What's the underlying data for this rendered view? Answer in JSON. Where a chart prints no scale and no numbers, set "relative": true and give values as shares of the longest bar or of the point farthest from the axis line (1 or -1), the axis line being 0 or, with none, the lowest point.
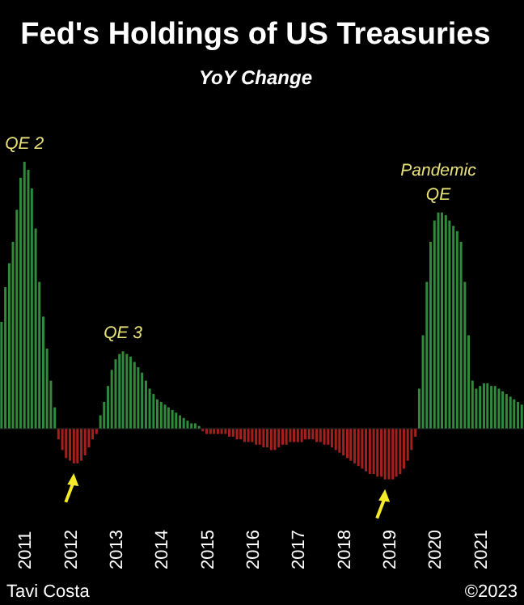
{
  "chart_data": {
    "type": "bar",
    "title": "Fed's Holdings of US Treasuries",
    "subtitle": "YoY Change",
    "relative": true,
    "x": [
      "2010-07",
      "2010-08",
      "2010-09",
      "2010-10",
      "2010-11",
      "2010-12",
      "2011-01",
      "2011-02",
      "2011-03",
      "2011-04",
      "2011-05",
      "2011-06",
      "2011-07",
      "2011-08",
      "2011-09",
      "2011-10",
      "2011-11",
      "2011-12",
      "2012-01",
      "2012-02",
      "2012-03",
      "2012-04",
      "2012-05",
      "2012-06",
      "2012-07",
      "2012-08",
      "2012-09",
      "2012-10",
      "2012-11",
      "2012-12",
      "2013-01",
      "2013-02",
      "2013-03",
      "2013-04",
      "2013-05",
      "2013-06",
      "2013-07",
      "2013-08",
      "2013-09",
      "2013-10",
      "2013-11",
      "2013-12",
      "2014-01",
      "2014-02",
      "2014-03",
      "2014-04",
      "2014-05",
      "2014-06",
      "2014-07",
      "2014-08",
      "2014-09",
      "2014-10",
      "2014-11",
      "2014-12",
      "2015-01",
      "2015-02",
      "2015-03",
      "2015-04",
      "2015-05",
      "2015-06",
      "2015-07",
      "2015-08",
      "2015-09",
      "2015-10",
      "2015-11",
      "2015-12",
      "2016-01",
      "2016-02",
      "2016-03",
      "2016-04",
      "2016-05",
      "2016-06",
      "2016-07",
      "2016-08",
      "2016-09",
      "2016-10",
      "2016-11",
      "2016-12",
      "2017-01",
      "2017-02",
      "2017-03",
      "2017-04",
      "2017-05",
      "2017-06",
      "2017-07",
      "2017-08",
      "2017-09",
      "2017-10",
      "2017-11",
      "2017-12",
      "2018-01",
      "2018-02",
      "2018-03",
      "2018-04",
      "2018-05",
      "2018-06",
      "2018-07",
      "2018-08",
      "2018-09",
      "2018-10",
      "2018-11",
      "2018-12",
      "2019-01",
      "2019-02",
      "2019-03",
      "2019-04",
      "2019-05",
      "2019-06",
      "2019-07",
      "2019-08",
      "2019-09",
      "2019-10",
      "2019-11",
      "2019-12",
      "2020-01",
      "2020-02",
      "2020-03",
      "2020-04",
      "2020-05",
      "2020-06",
      "2020-07",
      "2020-08",
      "2020-09",
      "2020-10",
      "2020-11",
      "2020-12",
      "2021-01",
      "2021-02",
      "2021-03",
      "2021-04",
      "2021-05",
      "2021-06",
      "2021-07",
      "2021-08",
      "2021-09",
      "2021-10",
      "2021-11",
      "2021-12"
    ],
    "xlim": [
      "2010-06",
      "2022-01"
    ],
    "xticks": [
      "2011",
      "2012",
      "2013",
      "2014",
      "2015",
      "2016",
      "2017",
      "2018",
      "2019",
      "2020",
      "2021"
    ],
    "series": [
      {
        "color": "#2f8a3c",
        "values": [
          0.4,
          0.53,
          0.62,
          0.7,
          0.82,
          0.94,
          1.0,
          0.97,
          0.9,
          0.75,
          0.55,
          0.42,
          0.3,
          0.18,
          0.08,
          null,
          null,
          null,
          null,
          null,
          null,
          null,
          null,
          null,
          null,
          null,
          0.05,
          0.1,
          0.16,
          0.22,
          0.26,
          0.28,
          0.29,
          0.28,
          0.27,
          0.25,
          0.23,
          0.21,
          0.18,
          0.15,
          0.13,
          0.11,
          0.1,
          0.09,
          0.08,
          0.07,
          0.06,
          0.05,
          0.04,
          0.03,
          0.02,
          0.02,
          0.01,
          null,
          null,
          null,
          null,
          null,
          null,
          null,
          null,
          null,
          null,
          null,
          null,
          null,
          null,
          null,
          null,
          null,
          null,
          null,
          null,
          null,
          null,
          null,
          null,
          null,
          null,
          null,
          null,
          null,
          null,
          null,
          null,
          null,
          null,
          null,
          null,
          null,
          null,
          null,
          null,
          null,
          null,
          null,
          null,
          null,
          null,
          null,
          null,
          null,
          null,
          null,
          null,
          null,
          null,
          null,
          null,
          null,
          0.15,
          0.35,
          0.55,
          0.7,
          0.78,
          0.81,
          0.81,
          0.8,
          0.78,
          0.76,
          0.74,
          0.7,
          0.55,
          0.35,
          0.18,
          0.15,
          0.16,
          0.17,
          0.17,
          0.16,
          0.16,
          0.15,
          0.14,
          0.13,
          0.12,
          0.11,
          0.1,
          0.09
        ]
      },
      {
        "color": "#a3201c",
        "values": [
          null,
          null,
          null,
          null,
          null,
          null,
          null,
          null,
          null,
          null,
          null,
          null,
          null,
          null,
          null,
          -0.04,
          -0.08,
          -0.11,
          -0.12,
          -0.13,
          -0.13,
          -0.12,
          -0.1,
          -0.07,
          -0.04,
          -0.02,
          null,
          null,
          null,
          null,
          null,
          null,
          null,
          null,
          null,
          null,
          null,
          null,
          null,
          null,
          null,
          null,
          null,
          null,
          null,
          null,
          null,
          null,
          null,
          null,
          null,
          null,
          null,
          -0.01,
          -0.02,
          -0.02,
          -0.02,
          -0.02,
          -0.02,
          -0.02,
          -0.03,
          -0.03,
          -0.04,
          -0.04,
          -0.05,
          -0.05,
          -0.05,
          -0.06,
          -0.06,
          -0.07,
          -0.07,
          -0.08,
          -0.08,
          -0.07,
          -0.06,
          -0.06,
          -0.05,
          -0.05,
          -0.05,
          -0.05,
          -0.04,
          -0.04,
          -0.04,
          -0.05,
          -0.05,
          -0.06,
          -0.06,
          -0.07,
          -0.08,
          -0.09,
          -0.1,
          -0.11,
          -0.12,
          -0.13,
          -0.14,
          -0.15,
          -0.16,
          -0.17,
          -0.17,
          -0.18,
          -0.18,
          -0.19,
          -0.19,
          -0.19,
          -0.18,
          -0.17,
          -0.15,
          -0.12,
          -0.08,
          -0.03,
          null,
          null,
          null,
          null,
          null,
          null,
          null,
          null,
          null,
          null,
          null,
          null,
          null,
          null,
          null,
          null,
          null,
          null,
          null,
          null,
          null,
          null,
          null,
          null,
          null,
          null,
          null,
          null
        ]
      }
    ],
    "annotations": [
      {
        "text": "QE 2",
        "x": "2011-01",
        "y": 1.0
      },
      {
        "text": "QE 3",
        "x": "2013-03",
        "y": 0.29
      },
      {
        "text": "Pandemic QE",
        "x": "2020-02",
        "y": 0.81
      },
      "Tavi Costa",
      "©2023"
    ]
  }
}
